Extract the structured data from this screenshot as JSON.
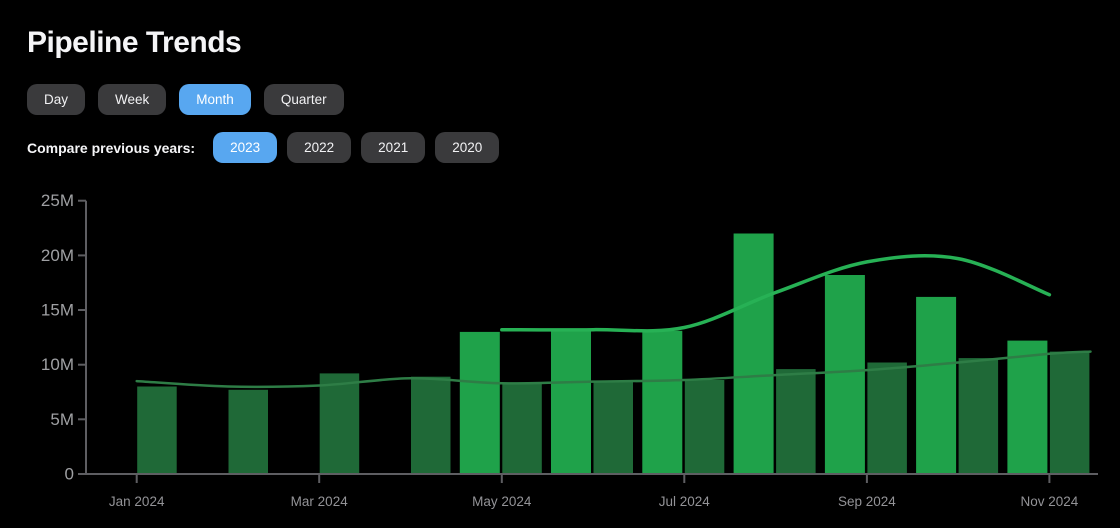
{
  "title": "Pipeline Trends",
  "period_tabs": [
    {
      "label": "Day",
      "active": false
    },
    {
      "label": "Week",
      "active": false
    },
    {
      "label": "Month",
      "active": true
    },
    {
      "label": "Quarter",
      "active": false
    }
  ],
  "compare": {
    "label": "Compare previous years:",
    "years": [
      {
        "label": "2023",
        "active": true
      },
      {
        "label": "2022",
        "active": false
      },
      {
        "label": "2021",
        "active": false
      },
      {
        "label": "2020",
        "active": false
      }
    ]
  },
  "colors": {
    "background": "#000000",
    "accent_blue": "#58a7f0",
    "button_gray": "#3a3a3c",
    "bar_bright_green": "#1fa24a",
    "bar_dark_green": "#1f6937",
    "line_bright": "#27b155",
    "line_dark": "#2e7d46",
    "axis": "#5e5e62",
    "y_label_gray": "#9fa0a3",
    "x_label_gray": "#939397",
    "title_white": "#f5f5f7"
  },
  "chart_data": {
    "type": "bar",
    "title": "",
    "xlabel": "",
    "ylabel": "",
    "unit": "M",
    "ylim": [
      0,
      25
    ],
    "month_count": 11,
    "grid": "off",
    "legend": "none",
    "y_ticks": [
      {
        "label": "0",
        "value": 0
      },
      {
        "label": "5M",
        "value": 5
      },
      {
        "label": "10M",
        "value": 10
      },
      {
        "label": "15M",
        "value": 15
      },
      {
        "label": "20M",
        "value": 20
      },
      {
        "label": "25M",
        "value": 25
      }
    ],
    "x_tick_labels": [
      {
        "label": "Jan 2024",
        "index": 0
      },
      {
        "label": "Mar 2024",
        "index": 2
      },
      {
        "label": "May 2024",
        "index": 4
      },
      {
        "label": "Jul 2024",
        "index": 6
      },
      {
        "label": "Sep 2024",
        "index": 8
      },
      {
        "label": "Nov 2024",
        "index": 10
      }
    ],
    "series": [
      {
        "name": "current-period-bars",
        "color_key": "bar_bright_green",
        "side": "left-of-tick",
        "values": [
          null,
          null,
          null,
          null,
          13.0,
          13.1,
          13.1,
          22.0,
          18.2,
          16.2,
          12.2
        ]
      },
      {
        "name": "comparison-period-bars",
        "color_key": "bar_dark_green",
        "side": "right-of-tick",
        "values": [
          8.0,
          7.7,
          9.2,
          8.9,
          8.3,
          8.5,
          8.6,
          9.6,
          10.2,
          10.6,
          11.2
        ]
      }
    ],
    "lines": [
      {
        "name": "current-trend-line",
        "color_key": "line_bright",
        "width": 3.5,
        "points": [
          [
            4,
            13.2
          ],
          [
            5,
            13.2
          ],
          [
            6,
            13.4
          ],
          [
            7,
            16.6
          ],
          [
            8,
            19.4
          ],
          [
            9,
            19.7
          ],
          [
            10,
            16.4
          ]
        ]
      },
      {
        "name": "comparison-trend-line",
        "color_key": "line_dark",
        "width": 2.5,
        "points": [
          [
            0,
            8.5
          ],
          [
            1,
            8.0
          ],
          [
            2,
            8.1
          ],
          [
            3,
            8.75
          ],
          [
            4,
            8.3
          ],
          [
            5,
            8.45
          ],
          [
            6,
            8.6
          ],
          [
            7,
            9.05
          ],
          [
            8,
            9.5
          ],
          [
            9,
            10.2
          ],
          [
            10,
            11.0
          ],
          [
            10.45,
            11.2
          ]
        ]
      }
    ]
  }
}
